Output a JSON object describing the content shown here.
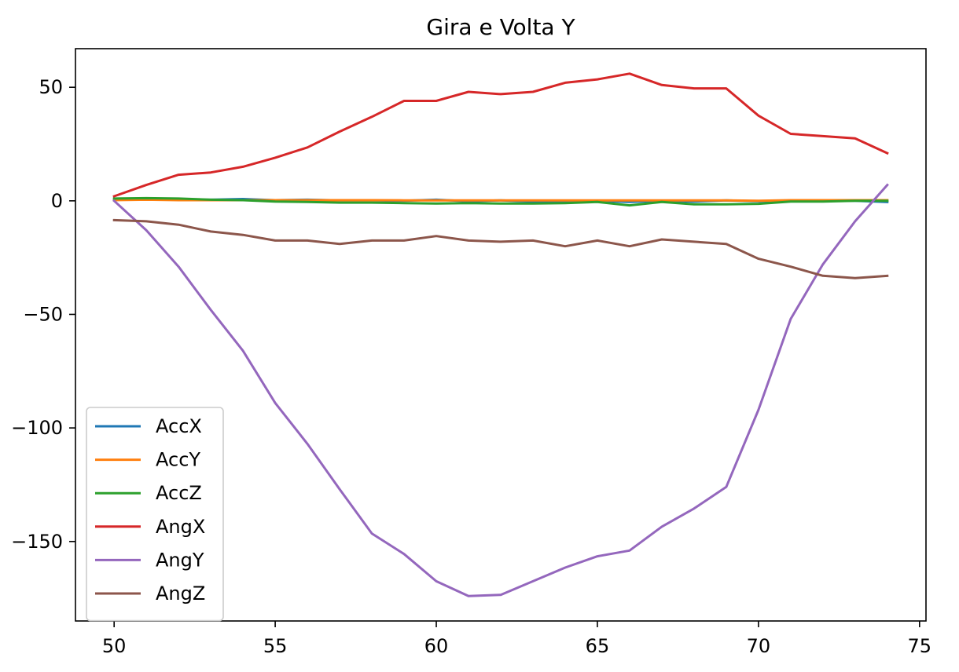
{
  "chart_data": {
    "type": "line",
    "title": "Gira e Volta Y",
    "xlabel": "",
    "ylabel": "",
    "xlim": [
      48.8,
      75.2
    ],
    "ylim": [
      -185,
      67
    ],
    "xticks": [
      50,
      55,
      60,
      65,
      70,
      75
    ],
    "yticks": [
      50,
      0,
      -50,
      -100,
      -150
    ],
    "ytick_labels": [
      "50",
      "0",
      "−50",
      "−100",
      "−150"
    ],
    "legend_position": "lower-left",
    "grid": false,
    "x": [
      50,
      51,
      52,
      53,
      54,
      55,
      56,
      57,
      58,
      59,
      60,
      61,
      62,
      63,
      64,
      65,
      66,
      67,
      68,
      69,
      70,
      71,
      72,
      73,
      74
    ],
    "series": [
      {
        "name": "AccX",
        "color": "#1f77b4",
        "values": [
          0.5,
          0.8,
          0.5,
          0.5,
          0.8,
          0.3,
          0.5,
          0.2,
          0.2,
          0.0,
          0.5,
          -0.2,
          0.2,
          -0.3,
          -0.3,
          0.0,
          -0.5,
          0.0,
          -0.3,
          0.2,
          -0.2,
          0.0,
          0.0,
          0.0,
          -0.5
        ]
      },
      {
        "name": "AccY",
        "color": "#ff7f0e",
        "values": [
          0.3,
          0.5,
          0.3,
          0.3,
          0.3,
          0.3,
          0.3,
          0.3,
          0.3,
          0.2,
          0.2,
          0.2,
          0.2,
          0.2,
          0.2,
          0.2,
          0.2,
          0.2,
          0.2,
          0.2,
          0.0,
          0.3,
          0.3,
          0.3,
          0.3
        ]
      },
      {
        "name": "AccZ",
        "color": "#2ca02c",
        "values": [
          1.0,
          1.2,
          1.0,
          0.5,
          0.3,
          -0.3,
          -0.5,
          -0.8,
          -0.8,
          -1.0,
          -1.2,
          -1.0,
          -1.2,
          -1.2,
          -1.0,
          -0.5,
          -2.0,
          -0.5,
          -1.5,
          -1.5,
          -1.3,
          -0.3,
          -0.3,
          0.0,
          0.0
        ]
      },
      {
        "name": "AngX",
        "color": "#d62728",
        "values": [
          2,
          7,
          11.5,
          12.5,
          15,
          19,
          23.5,
          30.5,
          37,
          44,
          44,
          48,
          47,
          48,
          52,
          53.5,
          56,
          51,
          49.5,
          49.5,
          37.5,
          29.5,
          28.5,
          27.5,
          21
        ]
      },
      {
        "name": "AngY",
        "color": "#9467bd",
        "values": [
          0,
          -13,
          -29,
          -48,
          -66,
          -89,
          -107,
          -127,
          -146.5,
          -155.5,
          -167.5,
          -174,
          -173.5,
          -167.5,
          -161.5,
          -156.5,
          -154,
          -143.5,
          -135.5,
          -126,
          -92,
          -52,
          -28,
          -9,
          7
        ]
      },
      {
        "name": "AngZ",
        "color": "#8c564b",
        "values": [
          -8.5,
          -9,
          -10.5,
          -13.5,
          -15,
          -17.5,
          -17.5,
          -19,
          -17.5,
          -17.5,
          -15.5,
          -17.5,
          -18,
          -17.5,
          -20,
          -17.5,
          -20,
          -17,
          -18,
          -19,
          -25.5,
          -29,
          -33,
          -34,
          -33
        ]
      }
    ]
  }
}
